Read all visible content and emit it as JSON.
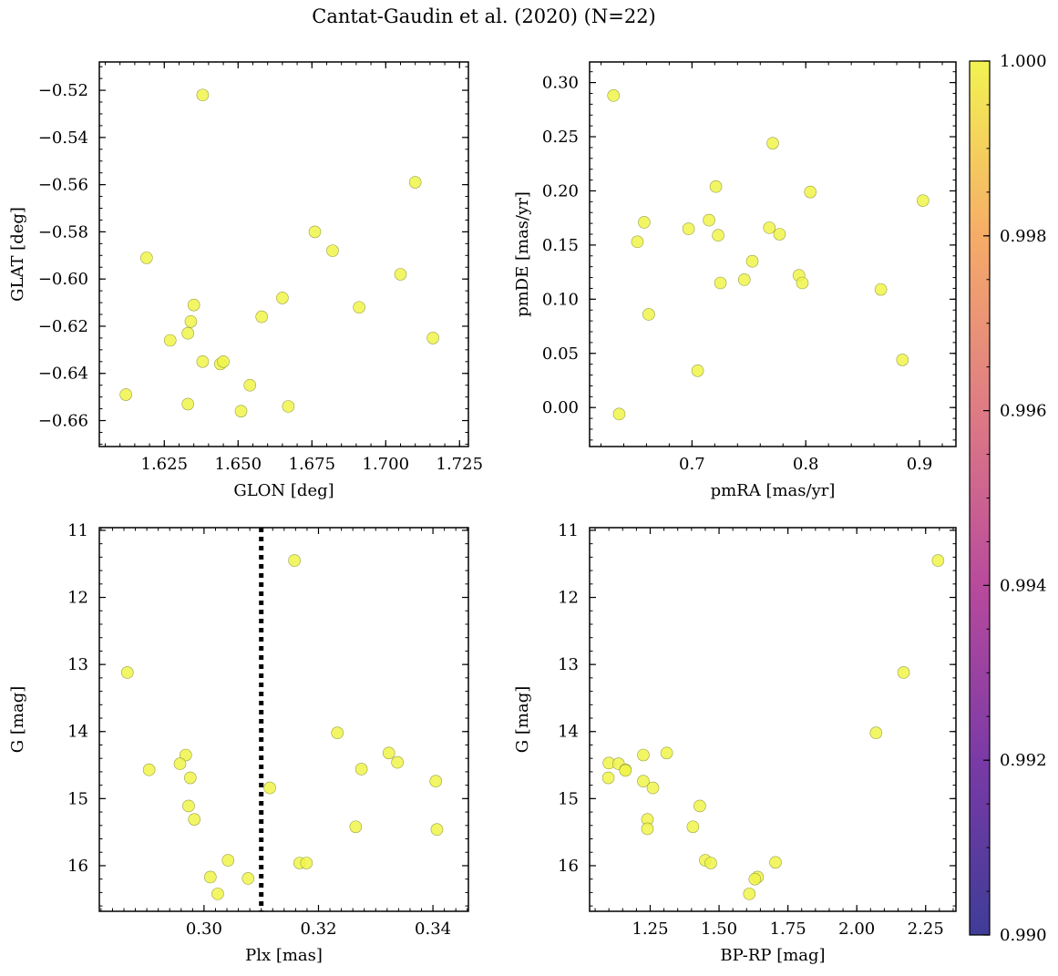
{
  "figure": {
    "title": "Cantat-Gaudin et al. (2020) (N=22)"
  },
  "colorbar": {
    "colormap": "plasma",
    "range": [
      0.99,
      1.0
    ],
    "ticks": [
      "0.990",
      "0.992",
      "0.994",
      "0.996",
      "0.998",
      "1.000"
    ]
  },
  "chart_data": [
    {
      "type": "scatter",
      "name": "glon-glat",
      "xlabel": "GLON [deg]",
      "ylabel": "GLAT [deg]",
      "xlim": [
        1.603,
        1.728
      ],
      "ylim": [
        -0.671,
        -0.508
      ],
      "invert_y": false,
      "xticks": [
        1.625,
        1.65,
        1.675,
        1.7,
        1.725
      ],
      "xticklabels": [
        "1.625",
        "1.650",
        "1.675",
        "1.700",
        "1.725"
      ],
      "yticks": [
        -0.52,
        -0.54,
        -0.56,
        -0.58,
        -0.6,
        -0.62,
        -0.64,
        -0.66
      ],
      "yticklabels": [
        "−0.52",
        "−0.54",
        "−0.56",
        "−0.58",
        "−0.60",
        "−0.62",
        "−0.64",
        "−0.66"
      ],
      "points": [
        [
          1.638,
          -0.522
        ],
        [
          1.619,
          -0.591
        ],
        [
          1.71,
          -0.559
        ],
        [
          1.676,
          -0.58
        ],
        [
          1.682,
          -0.588
        ],
        [
          1.705,
          -0.598
        ],
        [
          1.665,
          -0.608
        ],
        [
          1.691,
          -0.612
        ],
        [
          1.635,
          -0.611
        ],
        [
          1.634,
          -0.618
        ],
        [
          1.658,
          -0.616
        ],
        [
          1.627,
          -0.626
        ],
        [
          1.633,
          -0.623
        ],
        [
          1.716,
          -0.625
        ],
        [
          1.638,
          -0.635
        ],
        [
          1.644,
          -0.636
        ],
        [
          1.645,
          -0.635
        ],
        [
          1.612,
          -0.649
        ],
        [
          1.633,
          -0.653
        ],
        [
          1.654,
          -0.645
        ],
        [
          1.651,
          -0.656
        ],
        [
          1.667,
          -0.654
        ]
      ],
      "vline": null
    },
    {
      "type": "scatter",
      "name": "pmra-pmde",
      "xlabel": "pmRA [mas/yr]",
      "ylabel": "pmDE [mas/yr]",
      "xlim": [
        0.61,
        0.932
      ],
      "ylim": [
        -0.036,
        0.319
      ],
      "invert_y": false,
      "xticks": [
        0.7,
        0.8,
        0.9
      ],
      "xticklabels": [
        "0.7",
        "0.8",
        "0.9"
      ],
      "yticks": [
        0.3,
        0.25,
        0.2,
        0.15,
        0.1,
        0.05,
        0.0
      ],
      "yticklabels": [
        "0.30",
        "0.25",
        "0.20",
        "0.15",
        "0.10",
        "0.05",
        "0.00"
      ],
      "points": [
        [
          0.631,
          0.288
        ],
        [
          0.771,
          0.244
        ],
        [
          0.721,
          0.204
        ],
        [
          0.804,
          0.199
        ],
        [
          0.903,
          0.191
        ],
        [
          0.658,
          0.171
        ],
        [
          0.715,
          0.173
        ],
        [
          0.697,
          0.165
        ],
        [
          0.768,
          0.166
        ],
        [
          0.652,
          0.153
        ],
        [
          0.723,
          0.159
        ],
        [
          0.777,
          0.16
        ],
        [
          0.753,
          0.135
        ],
        [
          0.794,
          0.122
        ],
        [
          0.746,
          0.118
        ],
        [
          0.725,
          0.115
        ],
        [
          0.797,
          0.115
        ],
        [
          0.866,
          0.109
        ],
        [
          0.662,
          0.086
        ],
        [
          0.885,
          0.044
        ],
        [
          0.705,
          0.034
        ],
        [
          0.636,
          -0.006
        ]
      ],
      "vline": null
    },
    {
      "type": "scatter",
      "name": "plx-g",
      "xlabel": "Plx [mas]",
      "ylabel": "G [mag]",
      "xlim": [
        0.2817,
        0.3462
      ],
      "ylim": [
        10.96,
        16.68
      ],
      "invert_y": true,
      "xticks": [
        0.3,
        0.32,
        0.34
      ],
      "xticklabels": [
        "0.30",
        "0.32",
        "0.34"
      ],
      "yticks": [
        11,
        12,
        13,
        14,
        15,
        16
      ],
      "yticklabels": [
        "11",
        "12",
        "13",
        "14",
        "15",
        "16"
      ],
      "points": [
        [
          0.3158,
          11.45
        ],
        [
          0.2866,
          13.12
        ],
        [
          0.3233,
          14.02
        ],
        [
          0.2904,
          14.57
        ],
        [
          0.2968,
          14.35
        ],
        [
          0.2958,
          14.48
        ],
        [
          0.2976,
          14.69
        ],
        [
          0.3275,
          14.56
        ],
        [
          0.3323,
          14.32
        ],
        [
          0.3338,
          14.46
        ],
        [
          0.3405,
          14.74
        ],
        [
          0.3115,
          14.84
        ],
        [
          0.2973,
          15.11
        ],
        [
          0.2983,
          15.31
        ],
        [
          0.3265,
          15.42
        ],
        [
          0.3407,
          15.46
        ],
        [
          0.3042,
          15.92
        ],
        [
          0.3167,
          15.96
        ],
        [
          0.3179,
          15.96
        ],
        [
          0.3011,
          16.17
        ],
        [
          0.3077,
          16.19
        ],
        [
          0.3024,
          16.42
        ]
      ],
      "vline": 0.31
    },
    {
      "type": "scatter",
      "name": "bprp-g",
      "xlabel": "BP-RP [mag]",
      "ylabel": "G [mag]",
      "xlim": [
        1.03,
        2.36
      ],
      "ylim": [
        10.96,
        16.68
      ],
      "invert_y": true,
      "xticks": [
        1.25,
        1.5,
        1.75,
        2.0,
        2.25
      ],
      "xticklabels": [
        "1.25",
        "1.50",
        "1.75",
        "2.00",
        "2.25"
      ],
      "yticks": [
        11,
        12,
        13,
        14,
        15,
        16
      ],
      "yticklabels": [
        "11",
        "12",
        "13",
        "14",
        "15",
        "16"
      ],
      "points": [
        [
          2.295,
          11.45
        ],
        [
          2.17,
          13.12
        ],
        [
          2.07,
          14.02
        ],
        [
          1.1,
          14.47
        ],
        [
          1.135,
          14.48
        ],
        [
          1.16,
          14.57
        ],
        [
          1.098,
          14.69
        ],
        [
          1.225,
          14.35
        ],
        [
          1.31,
          14.32
        ],
        [
          1.225,
          14.74
        ],
        [
          1.26,
          14.84
        ],
        [
          1.43,
          15.11
        ],
        [
          1.24,
          15.31
        ],
        [
          1.24,
          15.45
        ],
        [
          1.405,
          15.42
        ],
        [
          1.45,
          15.92
        ],
        [
          1.47,
          15.96
        ],
        [
          1.705,
          15.95
        ],
        [
          1.64,
          16.17
        ],
        [
          1.63,
          16.2
        ],
        [
          1.61,
          16.42
        ],
        [
          1.16,
          14.58
        ]
      ],
      "vline": null
    }
  ]
}
